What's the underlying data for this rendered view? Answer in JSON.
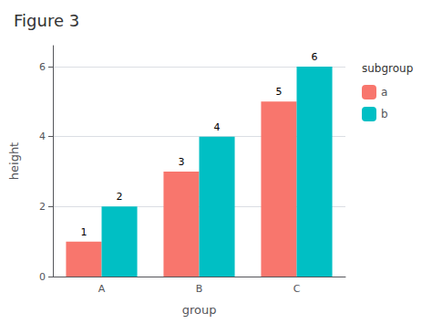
{
  "chart_data": {
    "type": "bar",
    "title": "Figure 3",
    "x_label": "group",
    "y_label": "height",
    "categories": [
      "A",
      "B",
      "C"
    ],
    "series": [
      {
        "name": "a",
        "color": "#F8766D",
        "values": [
          1,
          3,
          5
        ]
      },
      {
        "name": "b",
        "color": "#00BFC4",
        "values": [
          2,
          4,
          6
        ]
      }
    ],
    "legend_title": "subgroup",
    "ylim": [
      0,
      6.6
    ],
    "yticks": [
      0,
      2,
      4,
      6
    ],
    "grid": true,
    "legend": "right",
    "data_labels": true
  }
}
